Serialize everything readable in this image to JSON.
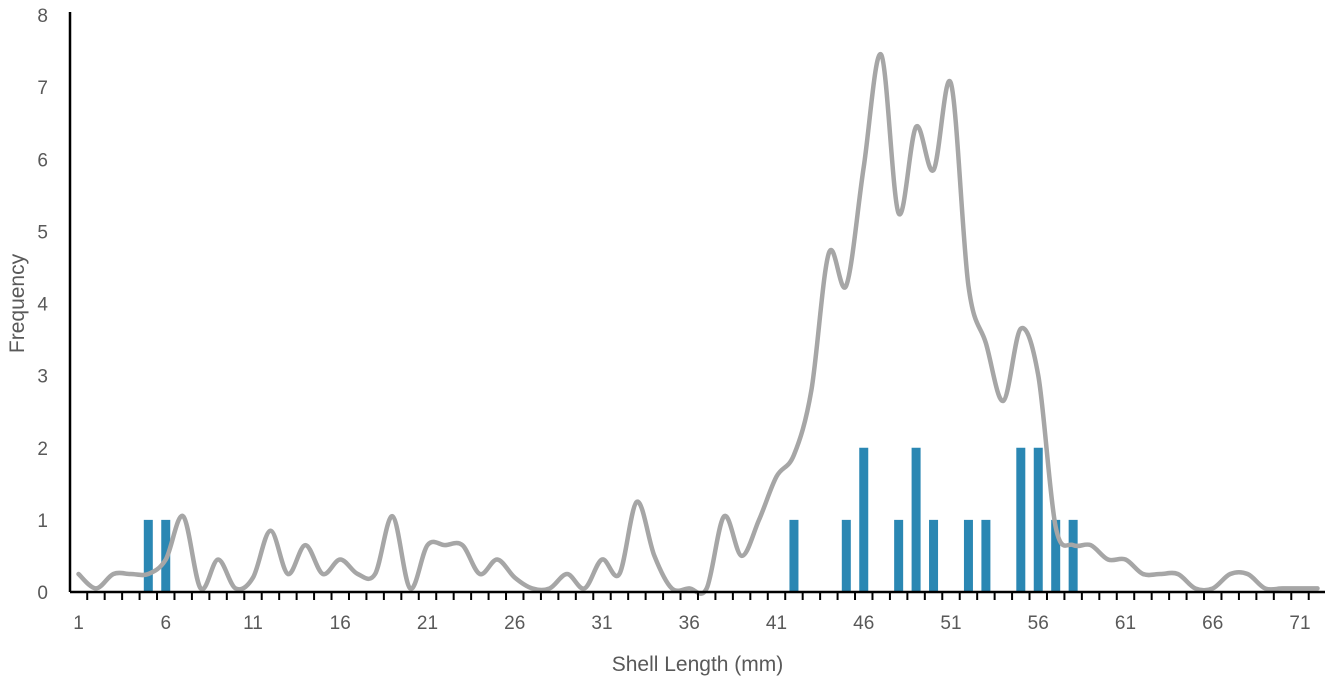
{
  "chart_data": {
    "type": "bar",
    "title": "",
    "xlabel": "Shell Length (mm)",
    "ylabel": "Frequency",
    "xlim": [
      1,
      72
    ],
    "ylim": [
      0,
      8
    ],
    "x_tick_labels": [
      "1",
      "6",
      "11",
      "16",
      "21",
      "26",
      "31",
      "36",
      "41",
      "46",
      "51",
      "56",
      "61",
      "66",
      "71"
    ],
    "y_tick_labels": [
      "0",
      "1",
      "2",
      "3",
      "4",
      "5",
      "6",
      "7",
      "8"
    ],
    "grid": false,
    "legend": "none",
    "colors": {
      "bars": "#2a87b3",
      "curve": "#a6a6a6",
      "axis": "#000000"
    },
    "series": [
      {
        "kind": "bar",
        "x": [
          5,
          6,
          42,
          45,
          46,
          48,
          49,
          50,
          52,
          53,
          55,
          56,
          57,
          58
        ],
        "values": [
          1,
          1,
          1,
          1,
          2,
          1,
          2,
          1,
          1,
          1,
          2,
          2,
          1,
          1
        ]
      },
      {
        "kind": "smoothed-line",
        "x": [
          1,
          2,
          3,
          4,
          5,
          6,
          7,
          8,
          9,
          10,
          11,
          12,
          13,
          14,
          15,
          16,
          17,
          18,
          19,
          20,
          21,
          22,
          23,
          24,
          25,
          26,
          27,
          28,
          29,
          30,
          31,
          32,
          33,
          34,
          35,
          36,
          37,
          38,
          39,
          40,
          41,
          42,
          43,
          44,
          45,
          46,
          47,
          48,
          49,
          50,
          51,
          52,
          53,
          54,
          55,
          56,
          57,
          58,
          59,
          60,
          61,
          62,
          63,
          64,
          65,
          66,
          67,
          68,
          69,
          70,
          71,
          72
        ],
        "values": [
          0.25,
          0.05,
          0.25,
          0.25,
          0.25,
          0.45,
          1.05,
          0.05,
          0.45,
          0.05,
          0.2,
          0.85,
          0.25,
          0.65,
          0.25,
          0.45,
          0.25,
          0.25,
          1.05,
          0.05,
          0.65,
          0.65,
          0.65,
          0.25,
          0.45,
          0.2,
          0.05,
          0.05,
          0.25,
          0.05,
          0.45,
          0.25,
          1.25,
          0.5,
          0.05,
          0.05,
          0.05,
          1.05,
          0.5,
          1.0,
          1.6,
          1.9,
          2.8,
          4.7,
          4.25,
          5.9,
          7.45,
          5.25,
          6.45,
          5.85,
          7.05,
          4.25,
          3.45,
          2.65,
          3.65,
          3.0,
          0.9,
          0.65,
          0.65,
          0.45,
          0.45,
          0.25,
          0.25,
          0.25,
          0.05,
          0.05,
          0.25,
          0.25,
          0.05,
          0.05,
          0.05,
          0.05
        ]
      }
    ]
  }
}
